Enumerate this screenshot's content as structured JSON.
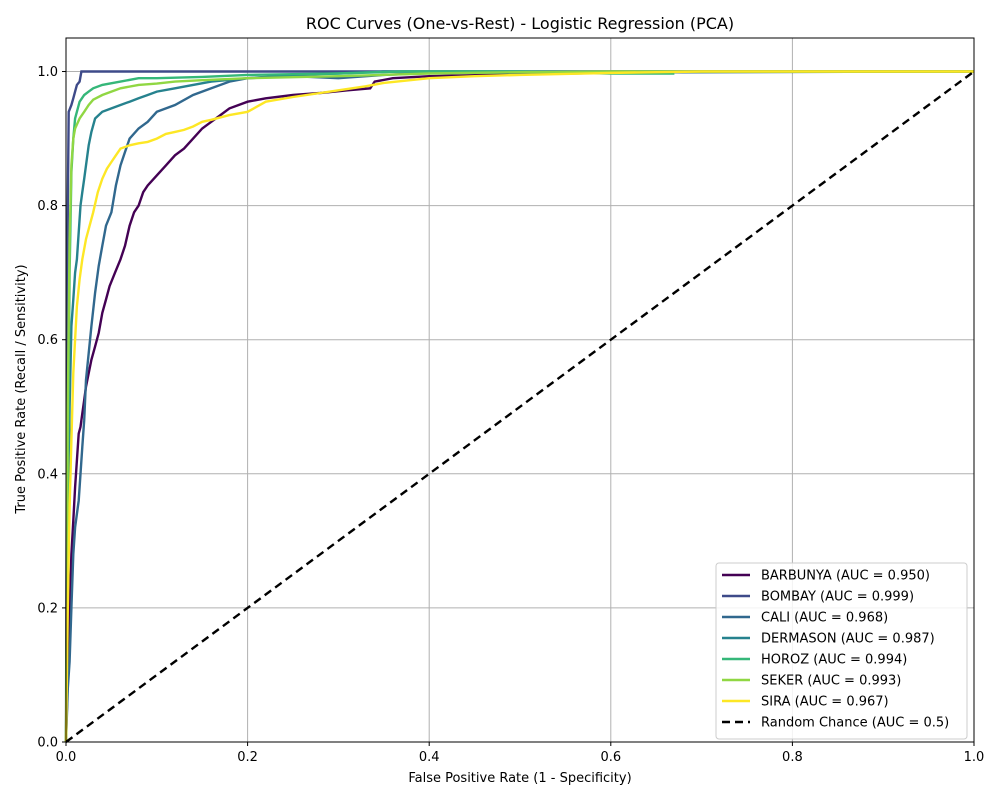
{
  "chart_data": {
    "type": "line",
    "title": "ROC Curves (One-vs-Rest) - Logistic Regression (PCA)",
    "xlabel": "False Positive Rate (1 - Specificity)",
    "ylabel": "True Positive Rate (Recall / Sensitivity)",
    "xlim": [
      0,
      1
    ],
    "ylim": [
      0,
      1.05
    ],
    "xticks": [
      "0.0",
      "0.2",
      "0.4",
      "0.6",
      "0.8",
      "1.0"
    ],
    "yticks": [
      "0.0",
      "0.2",
      "0.4",
      "0.6",
      "0.8",
      "1.0"
    ],
    "grid": true,
    "legend_position": "lower-right",
    "series": [
      {
        "name": "BARBUNYA (AUC = 0.950)",
        "color": "#440154",
        "dash": "solid",
        "points": [
          [
            0,
            0
          ],
          [
            0.002,
            0.1
          ],
          [
            0.004,
            0.2
          ],
          [
            0.006,
            0.28
          ],
          [
            0.008,
            0.33
          ],
          [
            0.01,
            0.38
          ],
          [
            0.012,
            0.42
          ],
          [
            0.014,
            0.46
          ],
          [
            0.016,
            0.47
          ],
          [
            0.018,
            0.49
          ],
          [
            0.02,
            0.51
          ],
          [
            0.022,
            0.53
          ],
          [
            0.025,
            0.55
          ],
          [
            0.028,
            0.57
          ],
          [
            0.032,
            0.59
          ],
          [
            0.036,
            0.61
          ],
          [
            0.04,
            0.64
          ],
          [
            0.044,
            0.66
          ],
          [
            0.048,
            0.68
          ],
          [
            0.054,
            0.7
          ],
          [
            0.06,
            0.72
          ],
          [
            0.065,
            0.74
          ],
          [
            0.07,
            0.77
          ],
          [
            0.075,
            0.79
          ],
          [
            0.08,
            0.8
          ],
          [
            0.085,
            0.82
          ],
          [
            0.09,
            0.83
          ],
          [
            0.1,
            0.845
          ],
          [
            0.11,
            0.86
          ],
          [
            0.12,
            0.875
          ],
          [
            0.13,
            0.885
          ],
          [
            0.14,
            0.9
          ],
          [
            0.15,
            0.915
          ],
          [
            0.16,
            0.925
          ],
          [
            0.17,
            0.935
          ],
          [
            0.18,
            0.945
          ],
          [
            0.2,
            0.955
          ],
          [
            0.22,
            0.96
          ],
          [
            0.25,
            0.965
          ],
          [
            0.28,
            0.968
          ],
          [
            0.31,
            0.972
          ],
          [
            0.335,
            0.975
          ],
          [
            0.34,
            0.985
          ],
          [
            0.36,
            0.99
          ],
          [
            0.4,
            0.993
          ],
          [
            0.5,
            0.996
          ],
          [
            0.6,
            0.998
          ],
          [
            0.7,
            1.0
          ],
          [
            1,
            1.0
          ]
        ]
      },
      {
        "name": "BOMBAY (AUC = 0.999)",
        "color": "#3e4a89",
        "dash": "solid",
        "points": [
          [
            0,
            0
          ],
          [
            0.001,
            0.5
          ],
          [
            0.002,
            0.8
          ],
          [
            0.003,
            0.94
          ],
          [
            0.006,
            0.95
          ],
          [
            0.008,
            0.96
          ],
          [
            0.01,
            0.97
          ],
          [
            0.012,
            0.98
          ],
          [
            0.015,
            0.985
          ],
          [
            0.017,
            1.0
          ],
          [
            1,
            1.0
          ]
        ]
      },
      {
        "name": "CALI (AUC = 0.968)",
        "color": "#31688e",
        "dash": "solid",
        "points": [
          [
            0,
            0
          ],
          [
            0.002,
            0.08
          ],
          [
            0.004,
            0.12
          ],
          [
            0.006,
            0.2
          ],
          [
            0.008,
            0.28
          ],
          [
            0.01,
            0.32
          ],
          [
            0.012,
            0.34
          ],
          [
            0.014,
            0.36
          ],
          [
            0.016,
            0.4
          ],
          [
            0.018,
            0.44
          ],
          [
            0.02,
            0.48
          ],
          [
            0.022,
            0.54
          ],
          [
            0.025,
            0.58
          ],
          [
            0.028,
            0.62
          ],
          [
            0.032,
            0.67
          ],
          [
            0.036,
            0.71
          ],
          [
            0.04,
            0.74
          ],
          [
            0.044,
            0.77
          ],
          [
            0.05,
            0.79
          ],
          [
            0.055,
            0.83
          ],
          [
            0.06,
            0.86
          ],
          [
            0.065,
            0.88
          ],
          [
            0.07,
            0.9
          ],
          [
            0.08,
            0.915
          ],
          [
            0.09,
            0.925
          ],
          [
            0.1,
            0.94
          ],
          [
            0.12,
            0.95
          ],
          [
            0.14,
            0.965
          ],
          [
            0.16,
            0.975
          ],
          [
            0.18,
            0.985
          ],
          [
            0.2,
            0.99
          ],
          [
            0.25,
            0.993
          ],
          [
            0.3,
            0.99
          ],
          [
            0.35,
            0.995
          ],
          [
            0.4,
            0.998
          ],
          [
            1,
            1.0
          ]
        ]
      },
      {
        "name": "DERMASON (AUC = 0.987)",
        "color": "#26828e",
        "dash": "solid",
        "points": [
          [
            0,
            0
          ],
          [
            0.002,
            0.3
          ],
          [
            0.004,
            0.5
          ],
          [
            0.006,
            0.62
          ],
          [
            0.008,
            0.66
          ],
          [
            0.01,
            0.7
          ],
          [
            0.012,
            0.72
          ],
          [
            0.014,
            0.76
          ],
          [
            0.016,
            0.8
          ],
          [
            0.018,
            0.82
          ],
          [
            0.02,
            0.84
          ],
          [
            0.022,
            0.86
          ],
          [
            0.025,
            0.89
          ],
          [
            0.028,
            0.91
          ],
          [
            0.032,
            0.93
          ],
          [
            0.036,
            0.935
          ],
          [
            0.04,
            0.94
          ],
          [
            0.05,
            0.945
          ],
          [
            0.06,
            0.95
          ],
          [
            0.07,
            0.955
          ],
          [
            0.08,
            0.96
          ],
          [
            0.09,
            0.965
          ],
          [
            0.1,
            0.97
          ],
          [
            0.12,
            0.975
          ],
          [
            0.14,
            0.98
          ],
          [
            0.16,
            0.985
          ],
          [
            0.2,
            0.99
          ],
          [
            0.25,
            0.995
          ],
          [
            0.3,
            0.997
          ],
          [
            0.35,
            1.0
          ],
          [
            1,
            1.0
          ]
        ]
      },
      {
        "name": "HOROZ (AUC = 0.994)",
        "color": "#35b779",
        "dash": "solid",
        "points": [
          [
            0,
            0
          ],
          [
            0.002,
            0.4
          ],
          [
            0.004,
            0.7
          ],
          [
            0.006,
            0.85
          ],
          [
            0.008,
            0.9
          ],
          [
            0.01,
            0.93
          ],
          [
            0.015,
            0.955
          ],
          [
            0.02,
            0.965
          ],
          [
            0.025,
            0.97
          ],
          [
            0.03,
            0.975
          ],
          [
            0.04,
            0.98
          ],
          [
            0.06,
            0.985
          ],
          [
            0.08,
            0.99
          ],
          [
            0.1,
            0.99
          ],
          [
            0.15,
            0.992
          ],
          [
            0.2,
            0.995
          ],
          [
            0.3,
            0.997
          ],
          [
            0.37,
            1.0
          ],
          [
            0.5,
            1.0
          ],
          [
            0.6,
            0.997
          ],
          [
            0.67,
            0.997
          ]
        ]
      },
      {
        "name": "SEKER (AUC = 0.993)",
        "color": "#90d743",
        "dash": "solid",
        "points": [
          [
            0,
            0
          ],
          [
            0.002,
            0.5
          ],
          [
            0.004,
            0.75
          ],
          [
            0.006,
            0.86
          ],
          [
            0.008,
            0.9
          ],
          [
            0.01,
            0.915
          ],
          [
            0.015,
            0.93
          ],
          [
            0.02,
            0.94
          ],
          [
            0.025,
            0.95
          ],
          [
            0.03,
            0.958
          ],
          [
            0.04,
            0.965
          ],
          [
            0.05,
            0.97
          ],
          [
            0.06,
            0.975
          ],
          [
            0.08,
            0.98
          ],
          [
            0.1,
            0.982
          ],
          [
            0.12,
            0.985
          ],
          [
            0.15,
            0.987
          ],
          [
            0.2,
            0.99
          ],
          [
            0.3,
            0.993
          ],
          [
            0.4,
            0.997
          ],
          [
            0.5,
            0.999
          ],
          [
            0.6,
            1.0
          ],
          [
            1,
            1.0
          ]
        ]
      },
      {
        "name": "SIRA (AUC = 0.967)",
        "color": "#fde725",
        "dash": "solid",
        "points": [
          [
            0,
            0
          ],
          [
            0.002,
            0.2
          ],
          [
            0.004,
            0.35
          ],
          [
            0.006,
            0.45
          ],
          [
            0.008,
            0.55
          ],
          [
            0.01,
            0.6
          ],
          [
            0.012,
            0.65
          ],
          [
            0.015,
            0.69
          ],
          [
            0.018,
            0.72
          ],
          [
            0.022,
            0.75
          ],
          [
            0.026,
            0.77
          ],
          [
            0.03,
            0.79
          ],
          [
            0.035,
            0.82
          ],
          [
            0.04,
            0.84
          ],
          [
            0.045,
            0.855
          ],
          [
            0.05,
            0.865
          ],
          [
            0.055,
            0.875
          ],
          [
            0.06,
            0.885
          ],
          [
            0.07,
            0.89
          ],
          [
            0.08,
            0.893
          ],
          [
            0.09,
            0.895
          ],
          [
            0.1,
            0.9
          ],
          [
            0.11,
            0.907
          ],
          [
            0.12,
            0.91
          ],
          [
            0.13,
            0.913
          ],
          [
            0.14,
            0.918
          ],
          [
            0.15,
            0.925
          ],
          [
            0.16,
            0.928
          ],
          [
            0.18,
            0.935
          ],
          [
            0.2,
            0.94
          ],
          [
            0.22,
            0.955
          ],
          [
            0.25,
            0.962
          ],
          [
            0.28,
            0.968
          ],
          [
            0.3,
            0.972
          ],
          [
            0.33,
            0.978
          ],
          [
            0.35,
            0.983
          ],
          [
            0.4,
            0.99
          ],
          [
            0.45,
            0.993
          ],
          [
            0.5,
            0.995
          ],
          [
            0.6,
            0.998
          ],
          [
            0.7,
            1.0
          ],
          [
            1,
            1.0
          ]
        ]
      },
      {
        "name": "Random Chance (AUC = 0.5)",
        "color": "#000000",
        "dash": "dashed",
        "points": [
          [
            0,
            0
          ],
          [
            1,
            1
          ]
        ]
      }
    ]
  }
}
